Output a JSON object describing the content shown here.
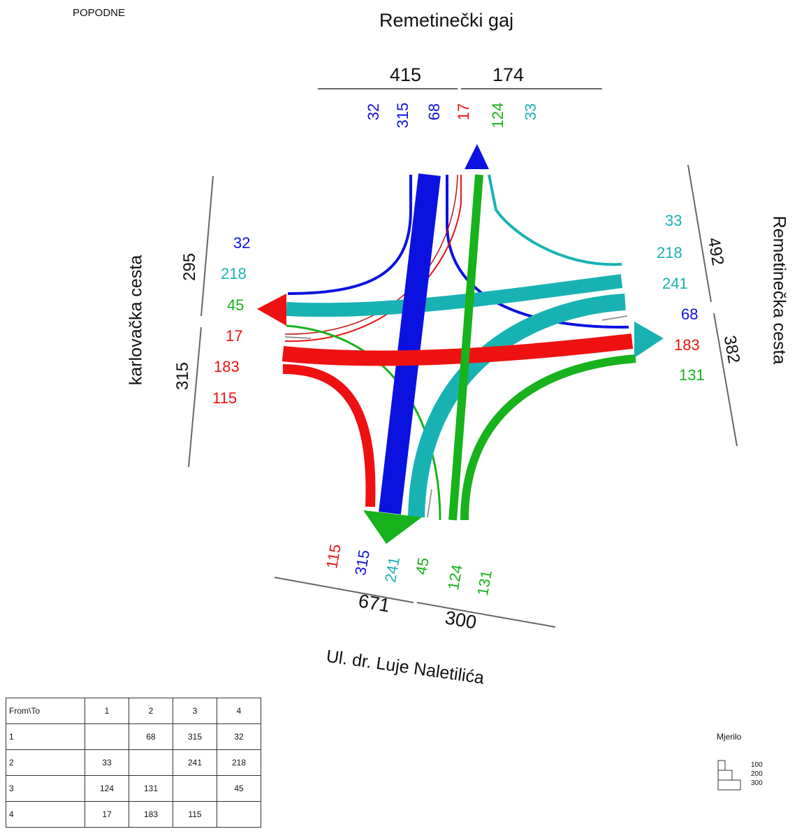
{
  "period_label": "POPODNE",
  "roads": {
    "north": {
      "name": "Remetinečki gaj",
      "totals": [
        "415",
        "174"
      ],
      "volumes": [
        "32",
        "315",
        "68",
        "17",
        "124",
        "33"
      ]
    },
    "west": {
      "name": "karlovačka cesta",
      "totals": [
        "295",
        "315"
      ],
      "volumes": [
        "32",
        "218",
        "45",
        "17",
        "183",
        "115"
      ]
    },
    "east": {
      "name": "Remetinečka cesta",
      "totals": [
        "492",
        "382"
      ],
      "volumes": [
        "33",
        "218",
        "241",
        "68",
        "183",
        "131"
      ]
    },
    "south": {
      "name": "Ul. dr. Luje Naletilića",
      "totals": [
        "671",
        "300"
      ],
      "volumes": [
        "115",
        "315",
        "241",
        "45",
        "124",
        "131"
      ]
    }
  },
  "colors": {
    "blue": "#0b12e0",
    "cyan": "#19b2b2",
    "red": "#ee1111",
    "green": "#17b21c"
  },
  "od_matrix": {
    "header": [
      "From\\To",
      "1",
      "2",
      "3",
      "4"
    ],
    "rows": [
      [
        "1",
        "",
        "68",
        "315",
        "32"
      ],
      [
        "2",
        "33",
        "",
        "241",
        "218"
      ],
      [
        "3",
        "124",
        "131",
        "",
        "45"
      ],
      [
        "4",
        "17",
        "183",
        "115",
        ""
      ]
    ]
  },
  "scale": {
    "title": "Mjerilo",
    "values": [
      "100",
      "200",
      "300"
    ]
  }
}
